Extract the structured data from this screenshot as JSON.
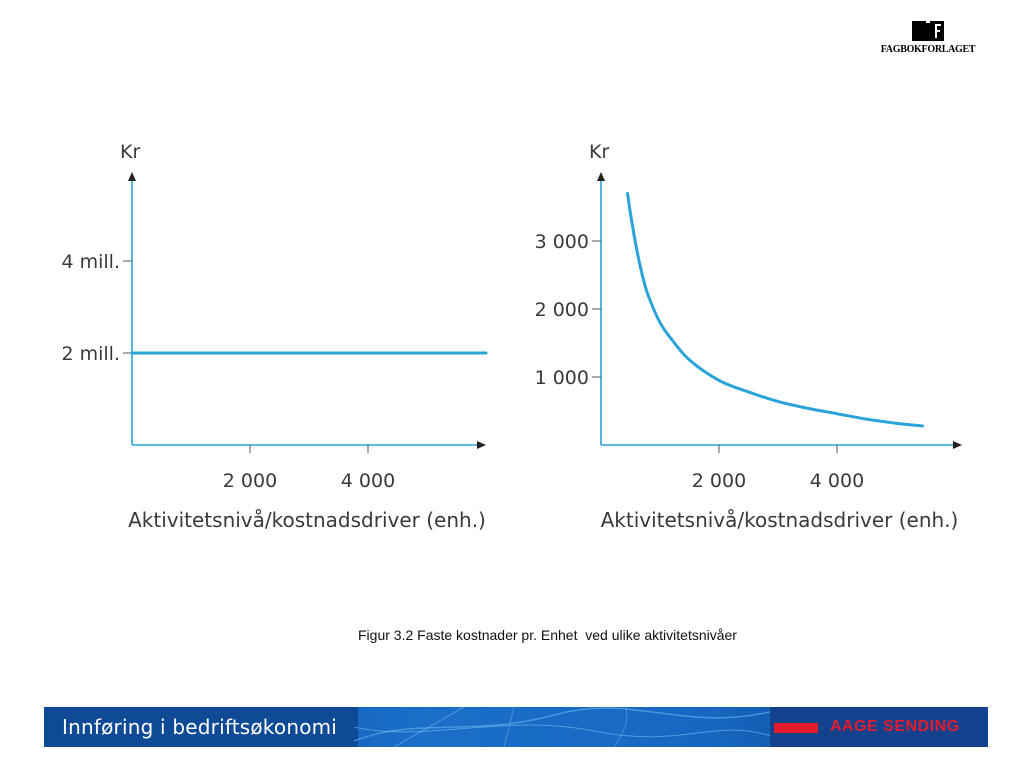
{
  "logo": {
    "text": "FAGBOKFORLAGET",
    "icon": "book-icon"
  },
  "chart_data": [
    {
      "type": "line",
      "title": "",
      "xlabel": "Aktivitetsnivå/kostnadsdriver (enh.)",
      "ylabel": "Kr",
      "xlim": [
        0,
        6000
      ],
      "ylim": [
        0,
        6000000
      ],
      "x_ticks": [
        {
          "value": 2000,
          "label": "2 000"
        },
        {
          "value": 4000,
          "label": "4 000"
        }
      ],
      "y_ticks": [
        {
          "value": 2000000,
          "label": "2 mill."
        },
        {
          "value": 4000000,
          "label": "4 mill."
        }
      ],
      "series": [
        {
          "x": [
            0,
            6000
          ],
          "y": [
            2000000,
            2000000
          ]
        }
      ],
      "color": "#29a3d8"
    },
    {
      "type": "line",
      "title": "",
      "xlabel": "Aktivitetsnivå/kostnadsdriver (enh.)",
      "ylabel": "Kr",
      "xlim": [
        0,
        6000
      ],
      "ylim": [
        0,
        3800
      ],
      "x_ticks": [
        {
          "value": 2000,
          "label": "2 000"
        },
        {
          "value": 4000,
          "label": "4 000"
        }
      ],
      "y_ticks": [
        {
          "value": 1000,
          "label": "1 000"
        },
        {
          "value": 2000,
          "label": "2 000"
        },
        {
          "value": 3000,
          "label": "3 000"
        }
      ],
      "series": [
        {
          "x": [
            450,
            500,
            600,
            700,
            800,
            1000,
            1200,
            1500,
            2000,
            2500,
            3000,
            3500,
            4000,
            4500,
            5000,
            5450
          ],
          "y": [
            3700,
            3400,
            2900,
            2500,
            2200,
            1800,
            1550,
            1250,
            950,
            780,
            640,
            540,
            460,
            380,
            320,
            280
          ]
        }
      ],
      "color": "#29a3d8"
    }
  ],
  "caption": "Figur 3.2 Faste kostnader pr. Enhet  ved ulike aktivitetsnivåer",
  "footer": {
    "title": "Innføring i bedriftsøkonomi",
    "brand": "AAGE SENDING"
  }
}
